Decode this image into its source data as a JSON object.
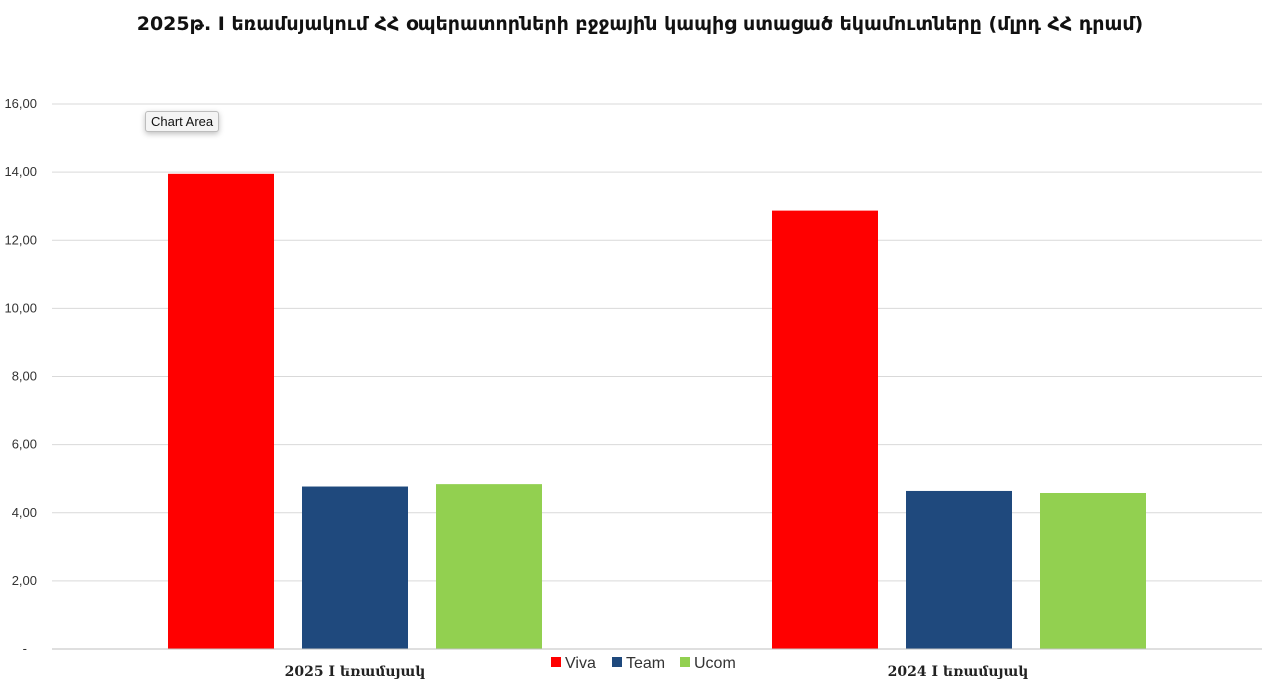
{
  "chart_data": {
    "type": "bar",
    "title": "2025թ. I եռամսյակում ՀՀ օպերատորների բջջային կապից ստացած եկամուտները (մլրդ ՀՀ դրամ)",
    "categories": [
      "2025 I եռամսյակ",
      "2024 I եռամսյակ"
    ],
    "series": [
      {
        "name": "Viva",
        "color": "#ff0000",
        "values": [
          13.95,
          12.87
        ]
      },
      {
        "name": "Team",
        "color": "#1f497d",
        "values": [
          4.77,
          4.64
        ]
      },
      {
        "name": "Ucom",
        "color": "#92d050",
        "values": [
          4.84,
          4.58
        ]
      }
    ],
    "yticks": [
      "-",
      "2,00",
      "4,00",
      "6,00",
      "8,00",
      "10,00",
      "12,00",
      "14,00",
      "16,00"
    ],
    "ylim": [
      0,
      16
    ],
    "grid": true,
    "legend_position": "bottom"
  },
  "tooltip": {
    "label": "Chart Area"
  }
}
